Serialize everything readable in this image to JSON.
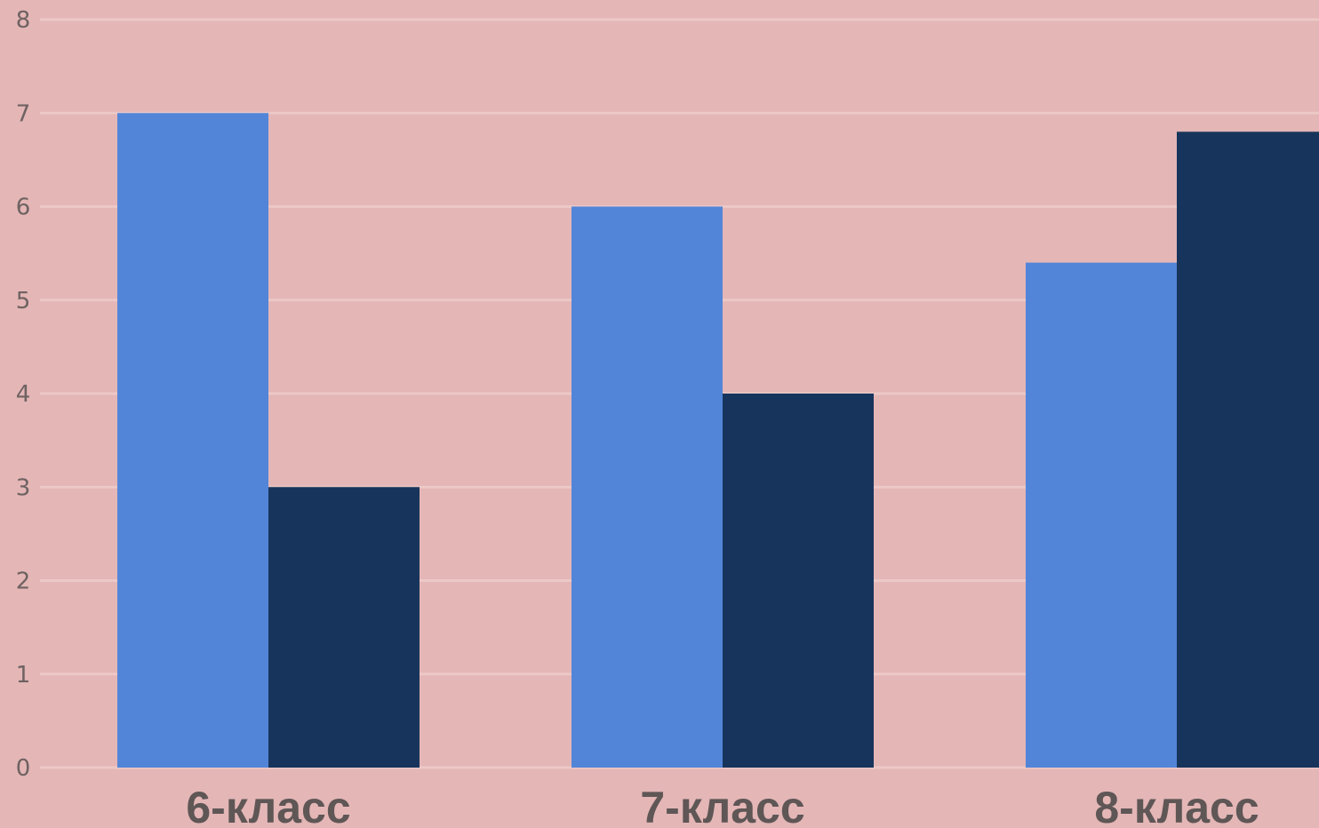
{
  "chart_data": {
    "type": "bar",
    "categories": [
      "6-класс",
      "7-класс",
      "8-класс"
    ],
    "series": [
      {
        "values": [
          7,
          6,
          5.4
        ]
      },
      {
        "values": [
          3,
          4,
          6.8
        ]
      }
    ],
    "title": "",
    "xlabel": "",
    "ylabel": "",
    "ylim": [
      0,
      8
    ],
    "yticks": [
      "0",
      "1",
      "2",
      "3",
      "4",
      "5",
      "6",
      "7",
      "8"
    ],
    "grid": true,
    "legend": "none"
  },
  "colors": {
    "background": "#e4b6b6",
    "gridline": "#ecc8c6",
    "series_1": "#5285d8",
    "series_2": "#17355c"
  }
}
